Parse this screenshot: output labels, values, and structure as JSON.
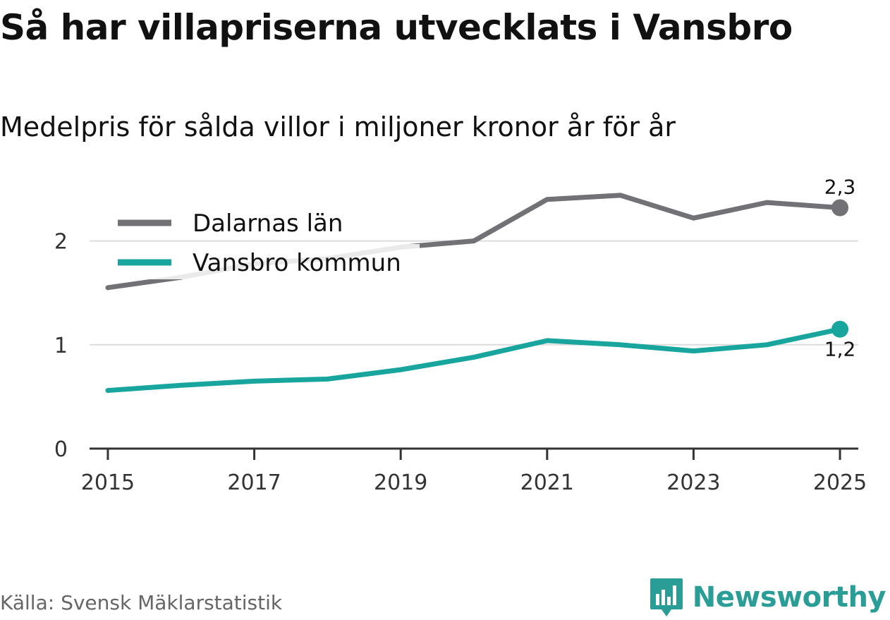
{
  "header": {
    "title": "Så har villapriserna utvecklats i Vansbro",
    "subtitle": "Medelpris för sålda villor i miljoner kronor år för år"
  },
  "footer": {
    "source": "Källa: Svensk Mäklarstatistik",
    "brand": "Newsworthy",
    "brand_icon": "newsworthy-logo-icon"
  },
  "colors": {
    "dalarna": "#727176",
    "vansbro": "#17a59e",
    "grid": "#dcdcdc",
    "axis": "#333333",
    "brand": "#2a9d96"
  },
  "chart_data": {
    "type": "line",
    "x": [
      2015,
      2016,
      2017,
      2018,
      2019,
      2020,
      2021,
      2022,
      2023,
      2024,
      2025
    ],
    "xticks": [
      "2015",
      "2017",
      "2019",
      "2021",
      "2023",
      "2025"
    ],
    "yticks": [
      "0",
      "1",
      "2"
    ],
    "ylim": [
      0,
      2.5
    ],
    "xlim": [
      2014.75,
      2025.25
    ],
    "grid": true,
    "legend_placement": "top-left",
    "series": [
      {
        "name": "Dalarnas län",
        "values": [
          1.55,
          1.65,
          1.78,
          1.83,
          1.94,
          2.0,
          2.4,
          2.44,
          2.22,
          2.37,
          2.32
        ],
        "end_label": "2,3"
      },
      {
        "name": "Vansbro kommun",
        "values": [
          0.56,
          0.61,
          0.65,
          0.67,
          0.76,
          0.88,
          1.04,
          1.0,
          0.94,
          1.0,
          1.15
        ],
        "end_label": "1,2"
      }
    ]
  }
}
